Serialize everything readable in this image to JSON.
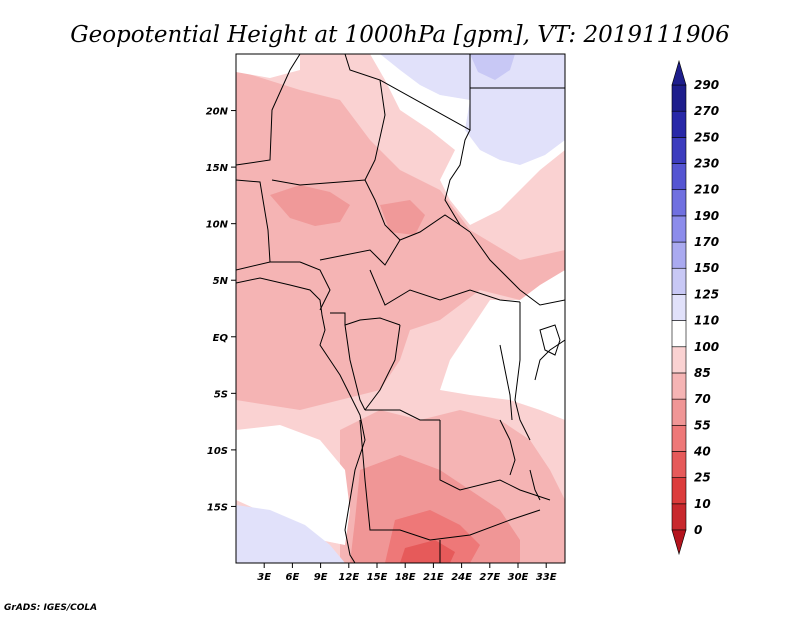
{
  "title": "Geopotential Height at 1000hPa [gpm], VT: 2019111906",
  "credit": "GrADS: IGES/COLA",
  "map": {
    "lon_range": [
      0,
      35
    ],
    "lat_range": [
      -20,
      25
    ],
    "lon_ticks": [
      {
        "value": 3,
        "label": "3E"
      },
      {
        "value": 6,
        "label": "6E"
      },
      {
        "value": 9,
        "label": "9E"
      },
      {
        "value": 12,
        "label": "12E"
      },
      {
        "value": 15,
        "label": "15E"
      },
      {
        "value": 18,
        "label": "18E"
      },
      {
        "value": 21,
        "label": "21E"
      },
      {
        "value": 24,
        "label": "24E"
      },
      {
        "value": 27,
        "label": "27E"
      },
      {
        "value": 30,
        "label": "30E"
      },
      {
        "value": 33,
        "label": "33E"
      }
    ],
    "lat_ticks": [
      {
        "value": 20,
        "label": "20N"
      },
      {
        "value": 15,
        "label": "15N"
      },
      {
        "value": 10,
        "label": "10N"
      },
      {
        "value": 5,
        "label": "5N"
      },
      {
        "value": 0,
        "label": "EQ"
      },
      {
        "value": -5,
        "label": "5S"
      },
      {
        "value": -10,
        "label": "10S"
      },
      {
        "value": -15,
        "label": "15S"
      }
    ]
  },
  "colorbar": {
    "levels": [
      "0",
      "10",
      "25",
      "40",
      "55",
      "70",
      "85",
      "100",
      "110",
      "125",
      "150",
      "170",
      "190",
      "210",
      "230",
      "250",
      "270",
      "290"
    ],
    "colors": [
      "#b4141e",
      "#c8282d",
      "#dc3c3c",
      "#e65a5a",
      "#ee7878",
      "#f09696",
      "#f5b4b4",
      "#fad2d2",
      "#ffffff",
      "#e1e1fa",
      "#c8c8f5",
      "#aaaaf0",
      "#8c8ceb",
      "#7070e0",
      "#5555d2",
      "#3c3cbe",
      "#2828a8",
      "#1e1e8c"
    ]
  }
}
